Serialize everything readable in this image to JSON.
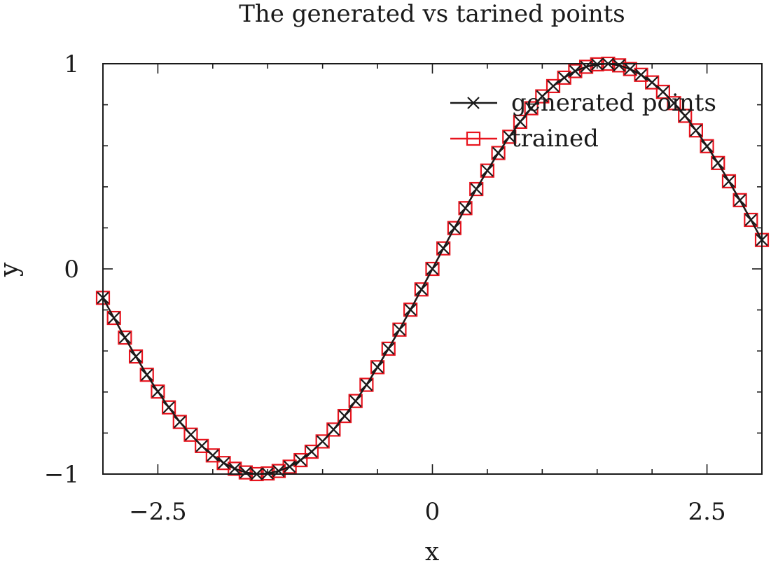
{
  "chart_data": {
    "type": "line",
    "title": "The generated vs tarined points",
    "xlabel": "x",
    "ylabel": "y",
    "xlim": [
      -3.0,
      3.0
    ],
    "ylim": [
      -1,
      1
    ],
    "xticks": [
      -2.5,
      0,
      2.5
    ],
    "xtick_labels": [
      "−2.5",
      "0",
      "2.5"
    ],
    "yticks": [
      -1,
      0,
      1
    ],
    "ytick_labels": [
      "−1",
      "0",
      "1"
    ],
    "grid": false,
    "legend_position": "top-right",
    "series": [
      {
        "name": "generated points",
        "marker": "x",
        "color": "#1a1a1a",
        "x": [
          -3.0,
          -2.9,
          -2.8,
          -2.7,
          -2.6,
          -2.5,
          -2.4,
          -2.3,
          -2.2,
          -2.1,
          -2.0,
          -1.9,
          -1.8,
          -1.7,
          -1.6,
          -1.5,
          -1.4,
          -1.3,
          -1.2,
          -1.1,
          -1.0,
          -0.9,
          -0.8,
          -0.7,
          -0.6,
          -0.5,
          -0.4,
          -0.3,
          -0.2,
          -0.1,
          0.0,
          0.1,
          0.2,
          0.3,
          0.4,
          0.5,
          0.6,
          0.7,
          0.8,
          0.9,
          1.0,
          1.1,
          1.2,
          1.3,
          1.4,
          1.5,
          1.6,
          1.7,
          1.8,
          1.9,
          2.0,
          2.1,
          2.2,
          2.3,
          2.4,
          2.5,
          2.6,
          2.7,
          2.8,
          2.9,
          3.0
        ],
        "y": [
          -0.141,
          -0.239,
          -0.335,
          -0.427,
          -0.516,
          -0.598,
          -0.675,
          -0.746,
          -0.808,
          -0.863,
          -0.909,
          -0.946,
          -0.974,
          -0.992,
          -1.0,
          -0.997,
          -0.985,
          -0.964,
          -0.932,
          -0.891,
          -0.841,
          -0.783,
          -0.717,
          -0.644,
          -0.565,
          -0.479,
          -0.389,
          -0.296,
          -0.199,
          -0.1,
          0.0,
          0.1,
          0.199,
          0.296,
          0.389,
          0.479,
          0.565,
          0.644,
          0.717,
          0.783,
          0.841,
          0.891,
          0.932,
          0.964,
          0.985,
          0.997,
          1.0,
          0.992,
          0.974,
          0.946,
          0.909,
          0.863,
          0.808,
          0.746,
          0.675,
          0.598,
          0.516,
          0.427,
          0.335,
          0.239,
          0.141
        ]
      },
      {
        "name": "trained",
        "marker": "square",
        "color": "#e8141e",
        "x": [
          -3.0,
          -2.9,
          -2.8,
          -2.7,
          -2.6,
          -2.5,
          -2.4,
          -2.3,
          -2.2,
          -2.1,
          -2.0,
          -1.9,
          -1.8,
          -1.7,
          -1.6,
          -1.5,
          -1.4,
          -1.3,
          -1.2,
          -1.1,
          -1.0,
          -0.9,
          -0.8,
          -0.7,
          -0.6,
          -0.5,
          -0.4,
          -0.3,
          -0.2,
          -0.1,
          0.0,
          0.1,
          0.2,
          0.3,
          0.4,
          0.5,
          0.6,
          0.7,
          0.8,
          0.9,
          1.0,
          1.1,
          1.2,
          1.3,
          1.4,
          1.5,
          1.6,
          1.7,
          1.8,
          1.9,
          2.0,
          2.1,
          2.2,
          2.3,
          2.4,
          2.5,
          2.6,
          2.7,
          2.8,
          2.9,
          3.0
        ],
        "y": [
          -0.141,
          -0.239,
          -0.335,
          -0.427,
          -0.516,
          -0.598,
          -0.675,
          -0.746,
          -0.808,
          -0.863,
          -0.909,
          -0.946,
          -0.974,
          -0.992,
          -1.0,
          -0.997,
          -0.985,
          -0.964,
          -0.932,
          -0.891,
          -0.841,
          -0.783,
          -0.717,
          -0.644,
          -0.565,
          -0.479,
          -0.389,
          -0.296,
          -0.199,
          -0.1,
          0.0,
          0.1,
          0.199,
          0.296,
          0.389,
          0.479,
          0.565,
          0.644,
          0.717,
          0.783,
          0.841,
          0.891,
          0.932,
          0.964,
          0.985,
          0.997,
          1.0,
          0.992,
          0.974,
          0.946,
          0.909,
          0.863,
          0.808,
          0.746,
          0.675,
          0.598,
          0.516,
          0.427,
          0.335,
          0.239,
          0.141
        ]
      }
    ]
  }
}
